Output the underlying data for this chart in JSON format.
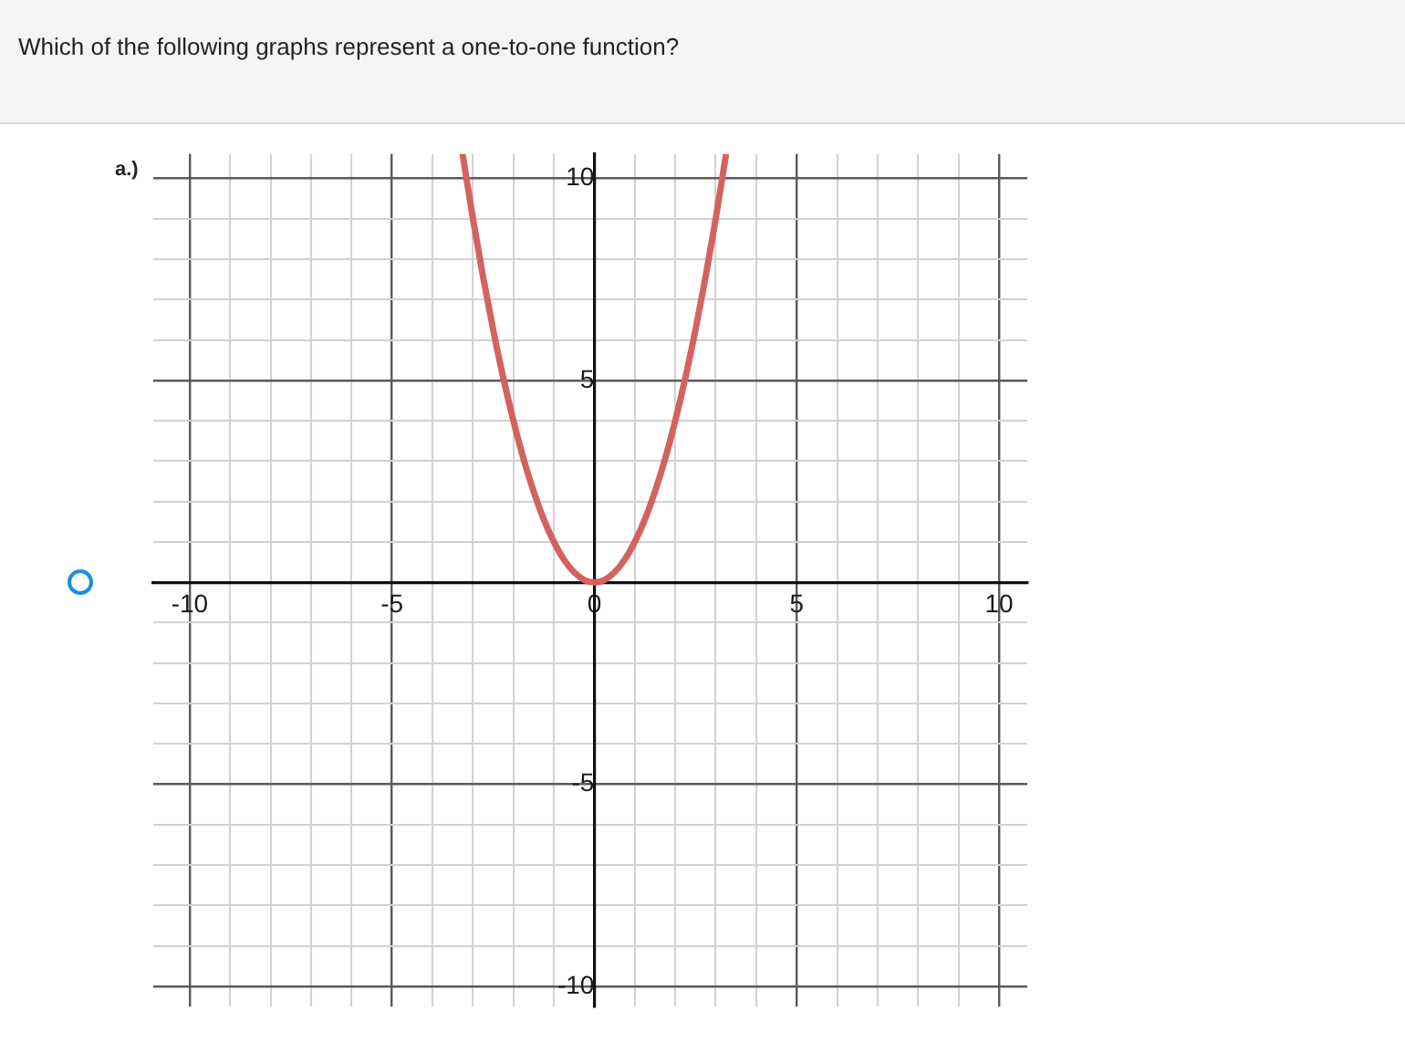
{
  "chart_data": {
    "type": "line",
    "title": "Which of the following graphs represent a one-to-one function?",
    "annotations": [
      "a.)"
    ],
    "x": [
      -3.25,
      -3,
      -2.75,
      -2.5,
      -2.25,
      -2,
      -1.75,
      -1.5,
      -1.25,
      -1,
      -0.75,
      -0.5,
      -0.25,
      0,
      0.25,
      0.5,
      0.75,
      1,
      1.25,
      1.5,
      1.75,
      2,
      2.25,
      2.5,
      2.75,
      3,
      3.25
    ],
    "series": [
      {
        "color": "#d4625f",
        "values": [
          10.56,
          9,
          7.56,
          6.25,
          5.06,
          4,
          3.06,
          2.25,
          1.56,
          1,
          0.56,
          0.25,
          0.06,
          0,
          0.06,
          0.25,
          0.56,
          1,
          1.56,
          2.25,
          3.06,
          4,
          5.06,
          6.25,
          7.56,
          9,
          10.56
        ]
      }
    ],
    "xlim": [
      -10.9,
      10.7
    ],
    "ylim": [
      -10.5,
      10.6
    ],
    "xticks": [
      -10,
      {
        "value": -9,
        "label": null
      },
      {
        "value": -8,
        "label": null
      },
      {
        "value": -7,
        "label": null
      },
      {
        "value": -6,
        "label": null
      },
      -5,
      {
        "value": -4,
        "label": null
      },
      {
        "value": -3,
        "label": null
      },
      {
        "value": -2,
        "label": null
      },
      {
        "value": -1,
        "label": null
      },
      0,
      {
        "value": 1,
        "label": null
      },
      {
        "value": 2,
        "label": null
      },
      {
        "value": 3,
        "label": null
      },
      {
        "value": 4,
        "label": null
      },
      5,
      {
        "value": 6,
        "label": null
      },
      {
        "value": 7,
        "label": null
      },
      {
        "value": 8,
        "label": null
      },
      {
        "value": 9,
        "label": null
      },
      10
    ],
    "yticks": [
      -10,
      {
        "value": -9,
        "label": null
      },
      {
        "value": -8,
        "label": null
      },
      {
        "value": -7,
        "label": null
      },
      {
        "value": -6,
        "label": null
      },
      -5,
      {
        "value": -4,
        "label": null
      },
      {
        "value": -3,
        "label": null
      },
      {
        "value": -2,
        "label": null
      },
      {
        "value": -1,
        "label": null
      },
      {
        "value": 0,
        "label": null
      },
      {
        "value": 1,
        "label": null
      },
      {
        "value": 2,
        "label": null
      },
      {
        "value": 3,
        "label": null
      },
      {
        "value": 4,
        "label": null
      },
      5,
      {
        "value": 6,
        "label": null
      },
      {
        "value": 7,
        "label": null
      },
      {
        "value": 8,
        "label": null
      },
      {
        "value": 9,
        "label": null
      },
      10
    ],
    "grid": true,
    "marker": "none",
    "line_style": "solid"
  }
}
